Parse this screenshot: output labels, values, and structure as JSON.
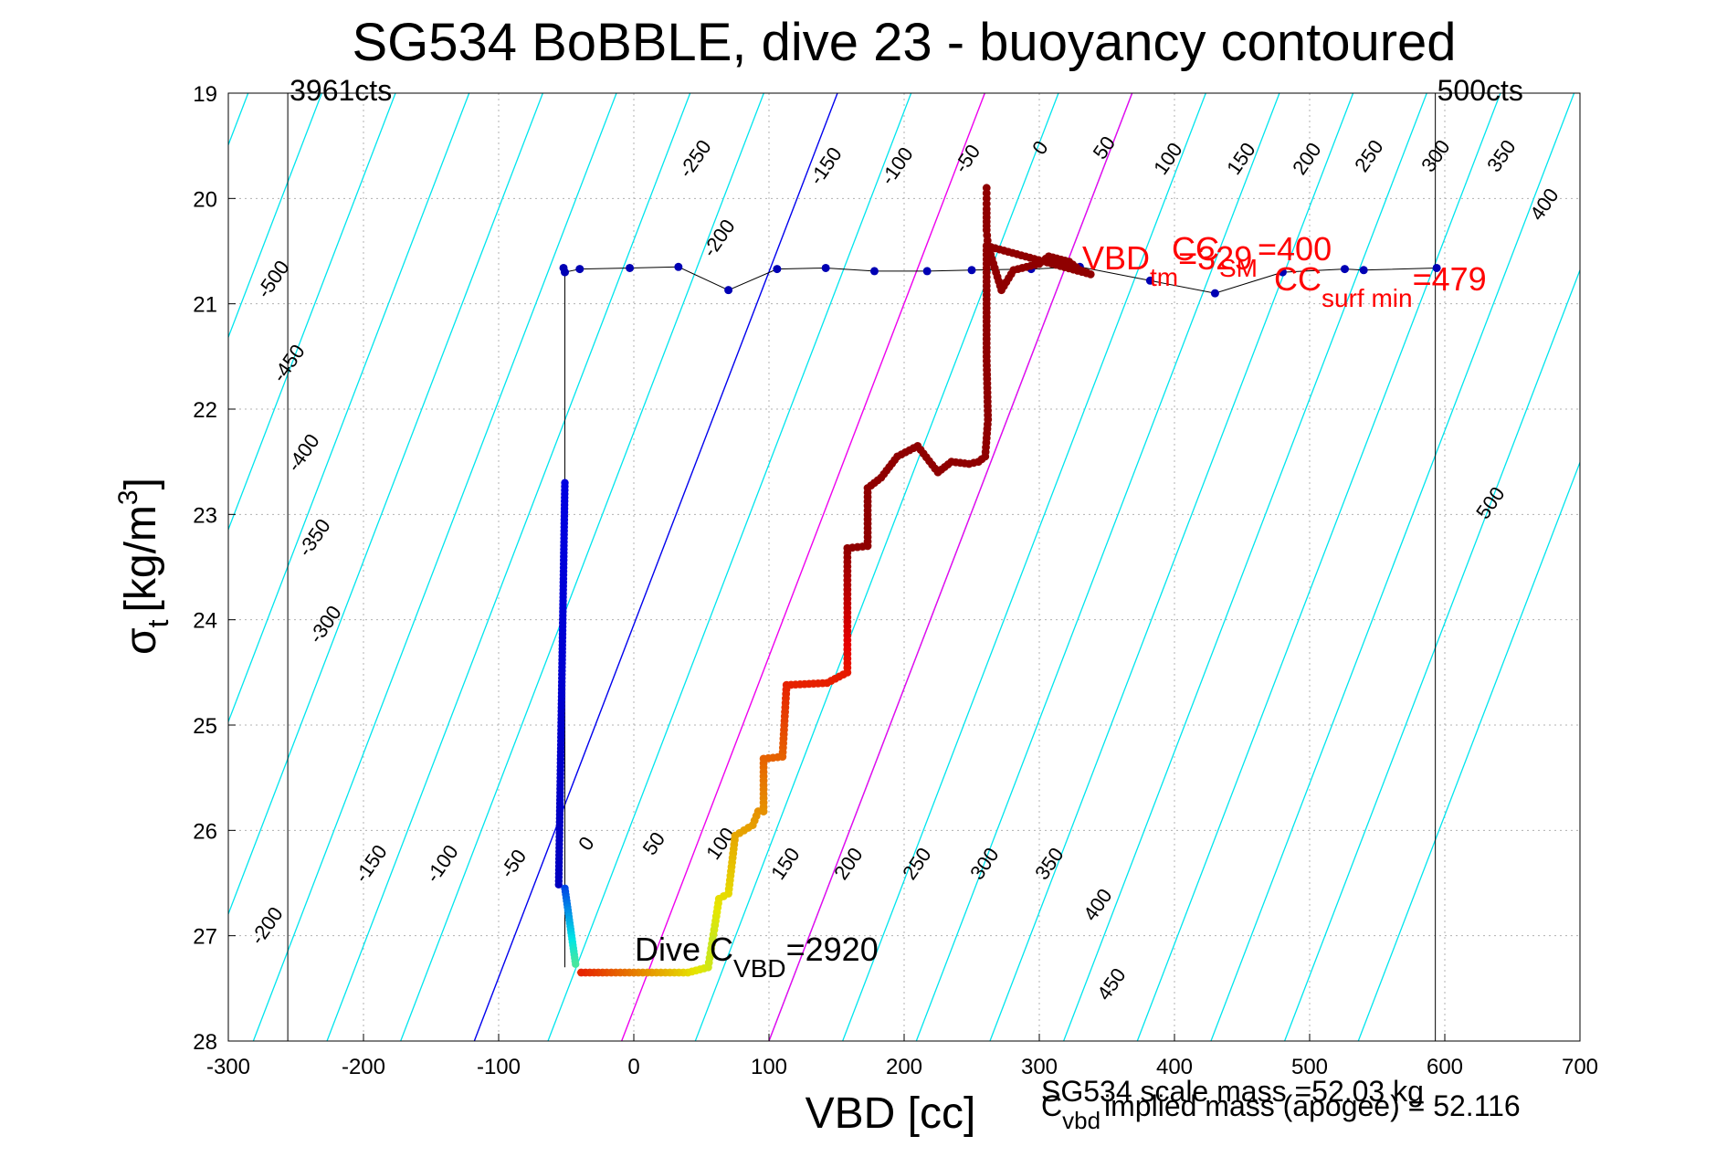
{
  "chart_data": {
    "type": "scatter",
    "title": "SG534 BoBBLE, dive 23 - buoyancy contoured",
    "xlabel": "VBD [cc]",
    "ylabel_main": "σ",
    "ylabel_sub": "t",
    "ylabel_units": "[kg/m",
    "ylabel_units_sup": "3",
    "ylabel_units_close": "]",
    "xlim": [
      -300,
      700
    ],
    "ylim": [
      19,
      28
    ],
    "y_reversed": true,
    "grid": true,
    "xticks": [
      "-300",
      "-200",
      "-100",
      "0",
      "100",
      "200",
      "300",
      "400",
      "500",
      "600",
      "700"
    ],
    "yticks": [
      "19",
      "20",
      "21",
      "22",
      "23",
      "24",
      "25",
      "26",
      "27",
      "28"
    ],
    "counts_lines": [
      {
        "label": "3961cts",
        "x": -256
      },
      {
        "label": "500cts",
        "x": 593
      }
    ],
    "contour_colors": {
      "cyan": "#00e5ee",
      "magenta": "#ee00ee",
      "zero": "#0000ee"
    },
    "contours": {
      "cyan_levels": [
        -500,
        -450,
        -400,
        -350,
        -300,
        -250,
        -200,
        -150,
        -100,
        -50,
        50,
        150,
        200,
        250,
        300,
        350,
        400,
        450,
        500,
        550,
        600
      ],
      "magenta_levels": [
        100,
        200
      ],
      "zero_level": 0,
      "spacing_cc": 54.5,
      "slope_sigma_per_cc": 0.0335,
      "zero_x_at_sigma28": -118
    },
    "contour_labels_top": [
      "-250",
      "-200",
      "-150",
      "-100",
      "-50",
      "0",
      "50",
      "100",
      "150",
      "200",
      "250",
      "300",
      "350",
      "400"
    ],
    "contour_labels_left": [
      "-500",
      "-450",
      "-400",
      "-350",
      "-300"
    ],
    "contour_labels_bottom": [
      "-200",
      "-150",
      "-100",
      "-50",
      "0",
      "50",
      "100",
      "150",
      "200",
      "250",
      "300",
      "350",
      "400",
      "450",
      "500"
    ],
    "climb_series": [
      {
        "x": -52,
        "y": 20.66
      },
      {
        "x": -51,
        "y": 20.7
      },
      {
        "x": -40,
        "y": 20.67
      },
      {
        "x": -3,
        "y": 20.66
      },
      {
        "x": 33,
        "y": 20.65
      },
      {
        "x": 70,
        "y": 20.87
      },
      {
        "x": 106,
        "y": 20.67
      },
      {
        "x": 142,
        "y": 20.66
      },
      {
        "x": 178,
        "y": 20.69
      },
      {
        "x": 217,
        "y": 20.69
      },
      {
        "x": 250,
        "y": 20.68
      },
      {
        "x": 294,
        "y": 20.67
      },
      {
        "x": 330,
        "y": 20.65
      },
      {
        "x": 382,
        "y": 20.78
      },
      {
        "x": 430,
        "y": 20.9
      },
      {
        "x": 480,
        "y": 20.7
      },
      {
        "x": 526,
        "y": 20.67
      },
      {
        "x": 540,
        "y": 20.68
      },
      {
        "x": 594,
        "y": 20.66
      }
    ],
    "climb_vertical": {
      "x": -51,
      "y_top": 20.7,
      "y_bottom": 27.3
    },
    "dive_path": [
      [
        261,
        19.9
      ],
      [
        261,
        20.0
      ],
      [
        261,
        20.1
      ],
      [
        261,
        20.3
      ],
      [
        262,
        20.45
      ],
      [
        272,
        20.87
      ],
      [
        281,
        20.68
      ],
      [
        300,
        20.62
      ],
      [
        307,
        20.55
      ],
      [
        322,
        20.6
      ],
      [
        330,
        20.68
      ],
      [
        338,
        20.72
      ],
      [
        261,
        20.45
      ],
      [
        261,
        21.0
      ],
      [
        261,
        21.5
      ],
      [
        262,
        22.1
      ],
      [
        260,
        22.45
      ],
      [
        255,
        22.5
      ],
      [
        248,
        22.52
      ],
      [
        235,
        22.5
      ],
      [
        225,
        22.6
      ],
      [
        210,
        22.35
      ],
      [
        195,
        22.45
      ],
      [
        183,
        22.65
      ],
      [
        173,
        22.75
      ],
      [
        173,
        23.3
      ],
      [
        158,
        23.32
      ],
      [
        158,
        24.5
      ],
      [
        143,
        24.6
      ],
      [
        113,
        24.62
      ],
      [
        110,
        25.3
      ],
      [
        96,
        25.32
      ],
      [
        96,
        25.82
      ],
      [
        92,
        25.82
      ],
      [
        88,
        25.95
      ],
      [
        75,
        26.05
      ],
      [
        70,
        26.6
      ],
      [
        63,
        26.65
      ],
      [
        60,
        26.9
      ],
      [
        55,
        27.3
      ],
      [
        40,
        27.35
      ],
      [
        10,
        27.35
      ],
      [
        -20,
        27.35
      ],
      [
        -42,
        27.35
      ]
    ],
    "annotations": {
      "dive_c": {
        "main": "Dive C",
        "sub": "VBD",
        "tail": "=2920"
      },
      "vbd_tm": {
        "main": "VBD",
        "sub": "tm",
        "tail": "=329"
      },
      "cc_sm": {
        "main": "CC",
        "sub": "SM",
        "tail": "=400"
      },
      "cc_surf": {
        "main": "CC",
        "sub": "surf min",
        "tail": "=479"
      },
      "scale_mass": "SG534 scale mass =52.03 kg",
      "implied_mass": {
        "main": "C",
        "sub": "vbd",
        "tail": "implied mass (apogee) = 52.116"
      }
    }
  }
}
